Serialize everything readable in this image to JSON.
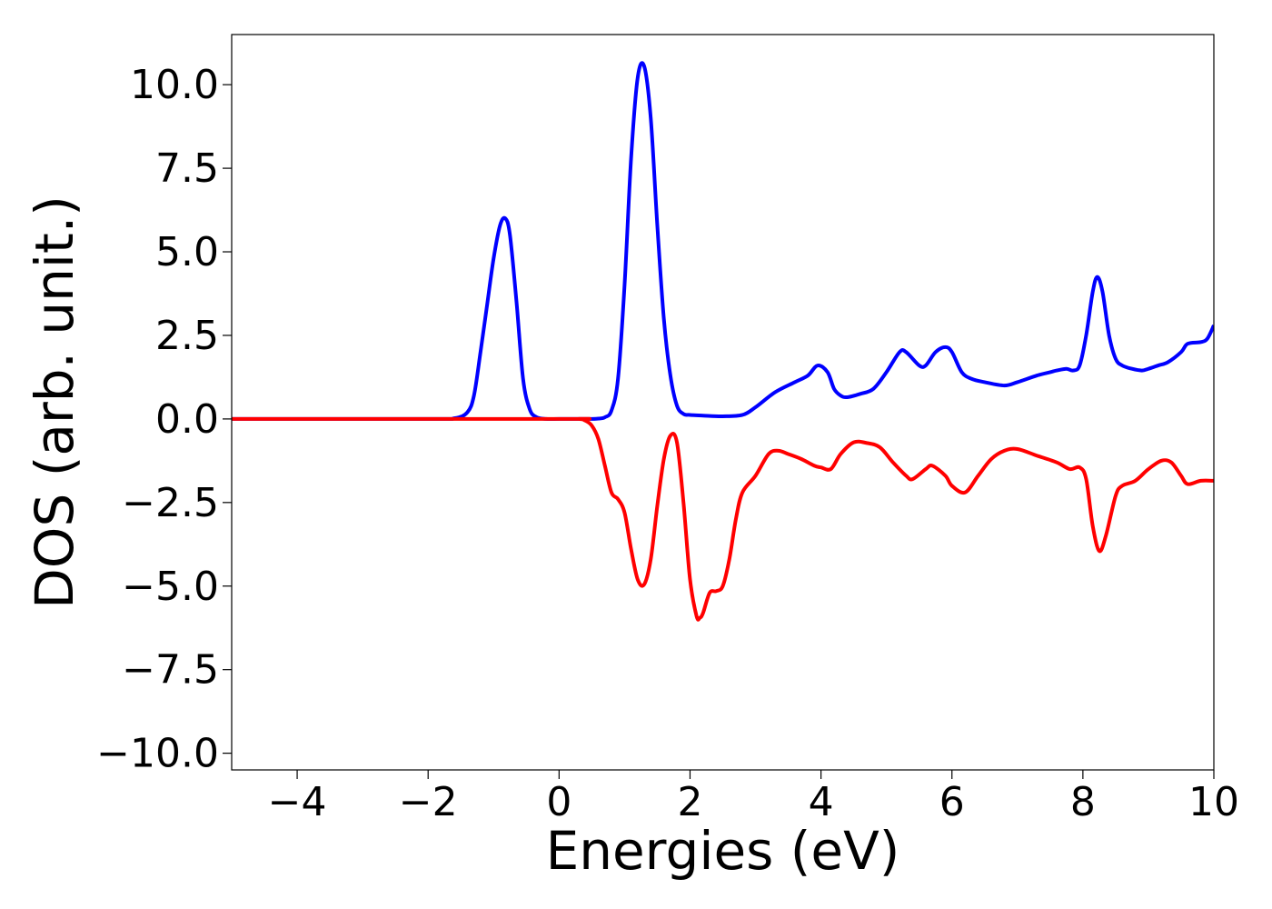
{
  "chart_data": {
    "type": "line",
    "title": "",
    "xlabel": "Energies (eV)",
    "ylabel": "DOS (arb. unit.)",
    "xlim": [
      -5,
      10
    ],
    "ylim": [
      -10.5,
      11.5
    ],
    "x_ticks": [
      -4,
      -2,
      0,
      2,
      4,
      6,
      8,
      10
    ],
    "x_tick_labels": [
      "−4",
      "−2",
      "0",
      "2",
      "4",
      "6",
      "8",
      "10"
    ],
    "y_ticks": [
      10,
      7.5,
      5,
      2.5,
      0,
      -2.5,
      -5,
      -7.5,
      -10
    ],
    "y_tick_labels": [
      "10.0",
      "7.5",
      "5.0",
      "2.5",
      "0.0",
      "−2.5",
      "−5.0",
      "−7.5",
      "−10.0"
    ],
    "grid": false,
    "legend": "none",
    "series": [
      {
        "color": "#0000ff",
        "x": [
          -5,
          -2,
          -1.6,
          -1.4,
          -1.3,
          -1.2,
          -1.1,
          -1.0,
          -0.9,
          -0.82,
          -0.75,
          -0.65,
          -0.55,
          -0.45,
          -0.35,
          -0.2,
          0,
          0.3,
          0.5,
          0.6,
          0.7,
          0.8,
          0.9,
          1.0,
          1.1,
          1.2,
          1.3,
          1.4,
          1.5,
          1.6,
          1.7,
          1.8,
          1.9,
          2.0,
          2.2,
          2.5,
          2.8,
          3.0,
          3.3,
          3.6,
          3.8,
          3.95,
          4.1,
          4.2,
          4.3,
          4.4,
          4.6,
          4.8,
          5.0,
          5.2,
          5.3,
          5.5,
          5.6,
          5.75,
          5.9,
          6.0,
          6.15,
          6.3,
          6.5,
          6.8,
          7.0,
          7.3,
          7.5,
          7.6,
          7.75,
          7.85,
          7.95,
          8.05,
          8.15,
          8.22,
          8.3,
          8.4,
          8.5,
          8.6,
          8.75,
          8.9,
          9.0,
          9.15,
          9.3,
          9.5,
          9.6,
          9.8,
          9.9,
          10.0
        ],
        "y": [
          0,
          0,
          0.02,
          0.2,
          0.7,
          2.0,
          3.4,
          4.8,
          5.8,
          6.0,
          5.5,
          3.5,
          1.2,
          0.3,
          0.06,
          0,
          0,
          0,
          0,
          0.01,
          0.05,
          0.25,
          1.2,
          4.0,
          7.8,
          10.2,
          10.55,
          9.0,
          5.8,
          3.0,
          1.3,
          0.4,
          0.15,
          0.12,
          0.1,
          0.08,
          0.12,
          0.35,
          0.8,
          1.1,
          1.3,
          1.6,
          1.4,
          0.9,
          0.7,
          0.65,
          0.75,
          0.9,
          1.4,
          2.0,
          2.0,
          1.6,
          1.6,
          2.0,
          2.15,
          2.0,
          1.4,
          1.2,
          1.1,
          1.0,
          1.1,
          1.3,
          1.4,
          1.45,
          1.5,
          1.45,
          1.6,
          2.5,
          3.8,
          4.25,
          3.8,
          2.5,
          1.8,
          1.6,
          1.5,
          1.45,
          1.5,
          1.6,
          1.7,
          2.0,
          2.25,
          2.3,
          2.4,
          2.8
        ]
      },
      {
        "color": "#ff0000",
        "x": [
          -5,
          0,
          0.3,
          0.4,
          0.5,
          0.6,
          0.7,
          0.8,
          0.9,
          1.0,
          1.1,
          1.2,
          1.3,
          1.4,
          1.5,
          1.6,
          1.7,
          1.8,
          1.9,
          2.0,
          2.1,
          2.15,
          2.2,
          2.3,
          2.4,
          2.5,
          2.6,
          2.7,
          2.8,
          3.0,
          3.2,
          3.35,
          3.5,
          3.7,
          3.9,
          4.0,
          4.15,
          4.3,
          4.5,
          4.7,
          4.9,
          5.1,
          5.3,
          5.4,
          5.6,
          5.7,
          5.9,
          6.0,
          6.2,
          6.4,
          6.6,
          6.8,
          7.0,
          7.3,
          7.6,
          7.8,
          7.95,
          8.05,
          8.15,
          8.25,
          8.35,
          8.5,
          8.6,
          8.8,
          9.0,
          9.2,
          9.35,
          9.5,
          9.6,
          9.8,
          10.0
        ],
        "y": [
          0,
          0,
          0,
          -0.05,
          -0.2,
          -0.6,
          -1.4,
          -2.2,
          -2.4,
          -2.8,
          -3.9,
          -4.8,
          -4.95,
          -4.2,
          -2.6,
          -1.2,
          -0.5,
          -0.7,
          -2.5,
          -4.8,
          -5.9,
          -5.95,
          -5.8,
          -5.2,
          -5.15,
          -5.0,
          -4.2,
          -3.0,
          -2.2,
          -1.7,
          -1.05,
          -0.95,
          -1.05,
          -1.2,
          -1.4,
          -1.45,
          -1.5,
          -1.05,
          -0.7,
          -0.72,
          -0.85,
          -1.3,
          -1.7,
          -1.8,
          -1.5,
          -1.4,
          -1.7,
          -2.0,
          -2.2,
          -1.7,
          -1.2,
          -0.95,
          -0.9,
          -1.1,
          -1.3,
          -1.5,
          -1.45,
          -1.8,
          -3.2,
          -3.95,
          -3.5,
          -2.3,
          -2.0,
          -1.85,
          -1.5,
          -1.25,
          -1.3,
          -1.7,
          -1.95,
          -1.85,
          -1.85
        ]
      }
    ]
  }
}
